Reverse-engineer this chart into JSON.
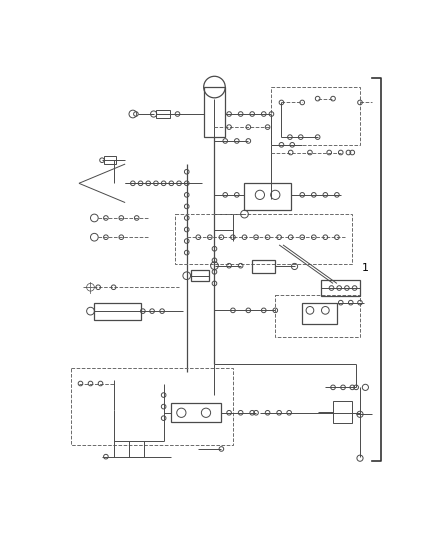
{
  "bg_color": "#ffffff",
  "lc": "#4a4a4a",
  "dc": "#6a6a6a",
  "bc": "#333333",
  "label_1": "1",
  "figsize": [
    4.38,
    5.33
  ],
  "dpi": 100,
  "xlim": [
    0,
    438
  ],
  "ylim": [
    0,
    533
  ]
}
